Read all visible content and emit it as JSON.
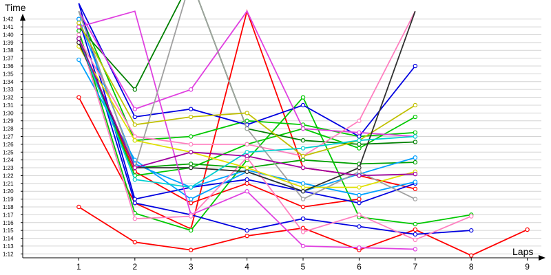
{
  "chart_data": {
    "type": "line",
    "xlabel": "Laps",
    "ylabel": "Time",
    "x_ticks": [
      "1",
      "2",
      "3",
      "4",
      "5",
      "6",
      "7",
      "8",
      "9"
    ],
    "y_ticks": [
      "1:12",
      "1:13",
      "1:14",
      "1:15",
      "1:16",
      "1:17",
      "1:18",
      "1:19",
      "1:20",
      "1:21",
      "1:22",
      "1:23",
      "1:24",
      "1:25",
      "1:26",
      "1:27",
      "1:28",
      "1:29",
      "1:30",
      "1:31",
      "1:32",
      "1:33",
      "1:34",
      "1:35",
      "1:36",
      "1:37",
      "1:38",
      "1:39",
      "1:40",
      "1:41",
      "1:42"
    ],
    "y_unit": "seconds",
    "xlim": [
      0.0,
      9.25
    ],
    "ylim": [
      71.5,
      102.5
    ],
    "grid": true,
    "series": [
      {
        "color": "#ff0000",
        "values": [
          78.0,
          73.5,
          72.5,
          74.3,
          75.3,
          72.5,
          75.1,
          71.8,
          75.1
        ]
      },
      {
        "color": "#ff0000",
        "values": [
          92.0,
          78.5,
          75.2,
          103.0,
          83.0,
          82.0,
          80.3
        ]
      },
      {
        "color": "#ff0000",
        "values": [
          99.0,
          82.5,
          78.5,
          81.0,
          78.0,
          79.0
        ]
      },
      {
        "color": "#00c800",
        "values": [
          100.5,
          77.2,
          75.0,
          84.0,
          92.0,
          76.7,
          75.8,
          77.0
        ]
      },
      {
        "color": "#00c800",
        "values": [
          103.0,
          86.5,
          87.0,
          89.0,
          88.5,
          87.0,
          87.5
        ]
      },
      {
        "color": "#00c800",
        "values": [
          99.5,
          82.0,
          83.0,
          86.0,
          88.0,
          85.5,
          89.5
        ]
      },
      {
        "color": "#00a000",
        "values": [
          103.0,
          83.0,
          83.5,
          83.0,
          84.0,
          83.5,
          83.7
        ]
      },
      {
        "color": "#008000",
        "values": [
          101.0,
          93.0,
          107.0,
          88.0,
          86.5,
          86.0,
          86.3
        ]
      },
      {
        "color": "#0000e0",
        "values": [
          104.0,
          89.5,
          90.5,
          88.5,
          91.0,
          87.0,
          96.0
        ]
      },
      {
        "color": "#0000e0",
        "values": [
          102.0,
          78.5,
          77.0,
          75.0,
          76.5,
          75.5,
          74.5,
          75.0
        ]
      },
      {
        "color": "#0000e0",
        "values": [
          104.0,
          79.0,
          80.5,
          81.5,
          80.0,
          78.5,
          81.0
        ]
      },
      {
        "color": "#00a0ff",
        "values": [
          96.8,
          84.0,
          79.0,
          82.5,
          80.0,
          82.2,
          84.3
        ]
      },
      {
        "color": "#00a0ff",
        "values": [
          102.0,
          83.5,
          80.5,
          82.7,
          81.0,
          79.5,
          81.2
        ]
      },
      {
        "color": "#e040e0",
        "values": [
          101.0,
          103.0,
          77.0,
          80.0,
          73.0,
          72.8,
          72.6
        ]
      },
      {
        "color": "#e040e0",
        "values": [
          103.0,
          90.5,
          93.0,
          103.0,
          88.0,
          87.5,
          87.0
        ]
      },
      {
        "color": "#ff80c0",
        "values": [
          100.0,
          76.5,
          76.8,
          84.3,
          74.8,
          77.0,
          73.8,
          76.8
        ]
      },
      {
        "color": "#ff80c0",
        "values": [
          99.5,
          87.0,
          86.0,
          86.0,
          84.5,
          89.0,
          103.0
        ]
      },
      {
        "color": "#a0a0a0",
        "values": [
          103.0,
          83.0,
          107.0,
          88.0,
          79.0,
          82.5,
          79.0
        ]
      },
      {
        "color": "#e0e000",
        "values": [
          98.5,
          86.5,
          85.0,
          83.0,
          80.5,
          80.5,
          82.5
        ]
      },
      {
        "color": "#c0c000",
        "values": [
          101.5,
          88.5,
          89.5,
          90.0,
          84.5,
          86.5,
          91.0
        ]
      },
      {
        "color": "#303030",
        "values": [
          99.0,
          83.0,
          83.0,
          82.5,
          80.0,
          83.0,
          103.0
        ]
      },
      {
        "color": "#00d0d0",
        "values": [
          99.5,
          81.5,
          80.5,
          85.0,
          85.5,
          86.5,
          87.0
        ]
      },
      {
        "color": "#a000a0",
        "values": [
          99.5,
          83.0,
          85.0,
          84.5,
          83.0,
          82.0,
          82.2
        ]
      }
    ]
  }
}
